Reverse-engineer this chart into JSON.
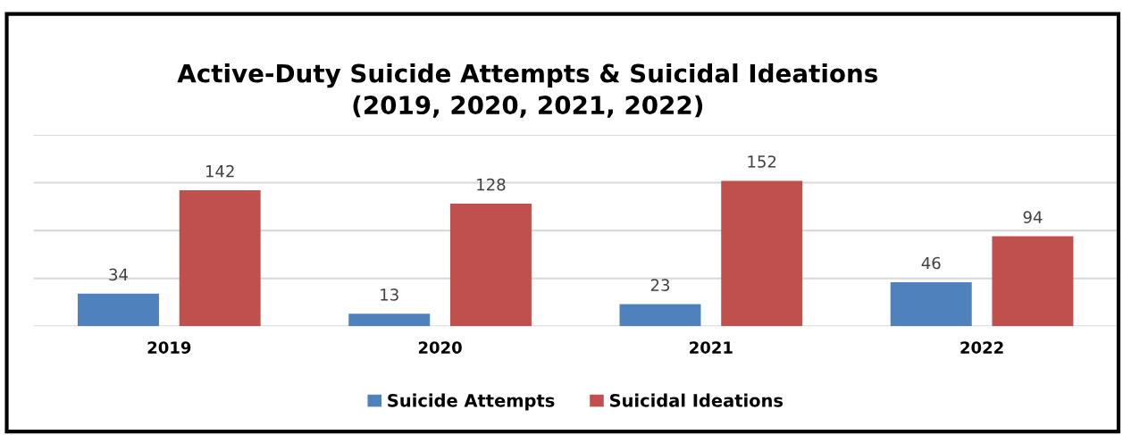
{
  "chart_data": {
    "type": "bar",
    "title": "Active-Duty Suicide Attempts & Suicidal Ideations\n(2019, 2020, 2021, 2022)",
    "categories": [
      "2019",
      "2020",
      "2021",
      "2022"
    ],
    "series": [
      {
        "name": "Suicide Attempts",
        "color": "#4f81bd",
        "values": [
          34,
          13,
          23,
          46
        ]
      },
      {
        "name": "Suicidal Ideations",
        "color": "#c0504d",
        "values": [
          142,
          128,
          152,
          94
        ]
      }
    ],
    "ylim": [
      0,
      200
    ],
    "yticks": [
      {
        "value": 0,
        "label": null
      },
      {
        "value": 50,
        "label": null
      },
      {
        "value": 100,
        "label": null
      },
      {
        "value": 150,
        "label": null
      },
      {
        "value": 200,
        "label": null
      }
    ],
    "tick_labels": "x",
    "grid": "y",
    "legend": "bottom",
    "data_labels": true
  }
}
